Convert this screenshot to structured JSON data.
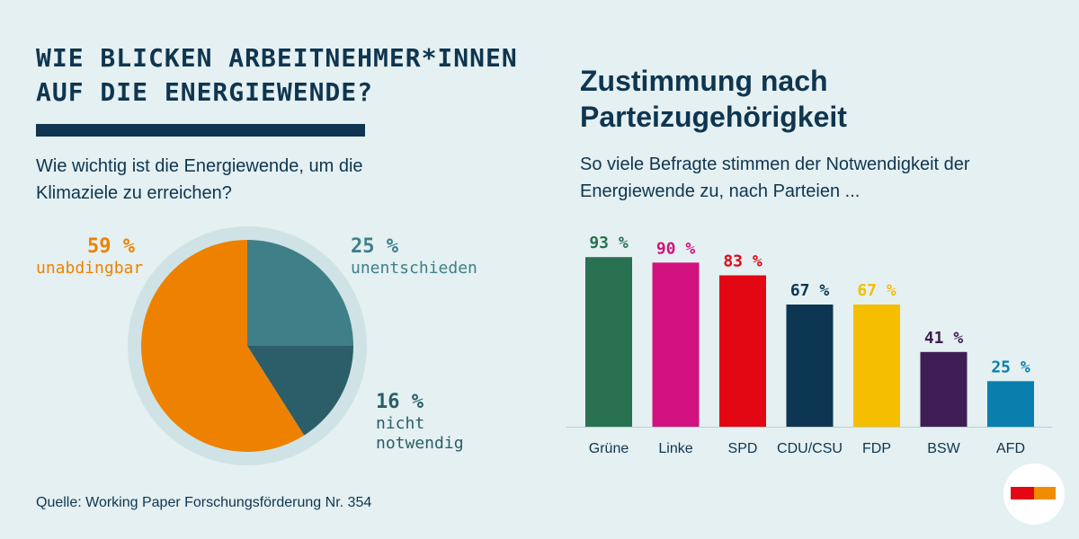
{
  "left": {
    "title": "WIE BLICKEN ARBEITNEHMER*INNEN AUF DIE ENERGIEWENDE?",
    "question": "Wie wichtig ist die Energiewende, um die Klimaziele zu erreichen?",
    "source": "Quelle: Working Paper Forschungsförderung Nr. 354"
  },
  "right": {
    "title": "Zustimmung nach Parteizugehörigkeit",
    "subtitle": "So viele Befragte stimmen der Notwendigkeit der Energiewende zu, nach Parteien ..."
  },
  "pie_labels": {
    "s0": {
      "pct": "59 %",
      "label": "unabdingbar"
    },
    "s1": {
      "pct": "25 %",
      "label": "unentschieden"
    },
    "s2": {
      "pct": "16 %",
      "label": "nicht notwendig"
    }
  },
  "chart_data": [
    {
      "type": "pie",
      "categories": [
        "unabdingbar",
        "unentschieden",
        "nicht notwendig"
      ],
      "values": [
        59,
        25,
        16
      ],
      "value_labels": [
        "59 %",
        "25 %",
        "16 %"
      ],
      "colors": [
        "#ee8200",
        "#3f7f88",
        "#2b5e68"
      ]
    },
    {
      "type": "bar",
      "categories": [
        "Grüne",
        "Linke",
        "SPD",
        "CDU/CSU",
        "FDP",
        "BSW",
        "AFD"
      ],
      "values": [
        93,
        90,
        83,
        67,
        67,
        41,
        25
      ],
      "value_labels": [
        "93 %",
        "90 %",
        "83 %",
        "67 %",
        "67 %",
        "41 %",
        "25 %"
      ],
      "colors": [
        "#2a7151",
        "#d2127e",
        "#e30613",
        "#0d3652",
        "#f6be00",
        "#3f1e55",
        "#0a7fad"
      ],
      "ylim": [
        0,
        100
      ]
    }
  ]
}
